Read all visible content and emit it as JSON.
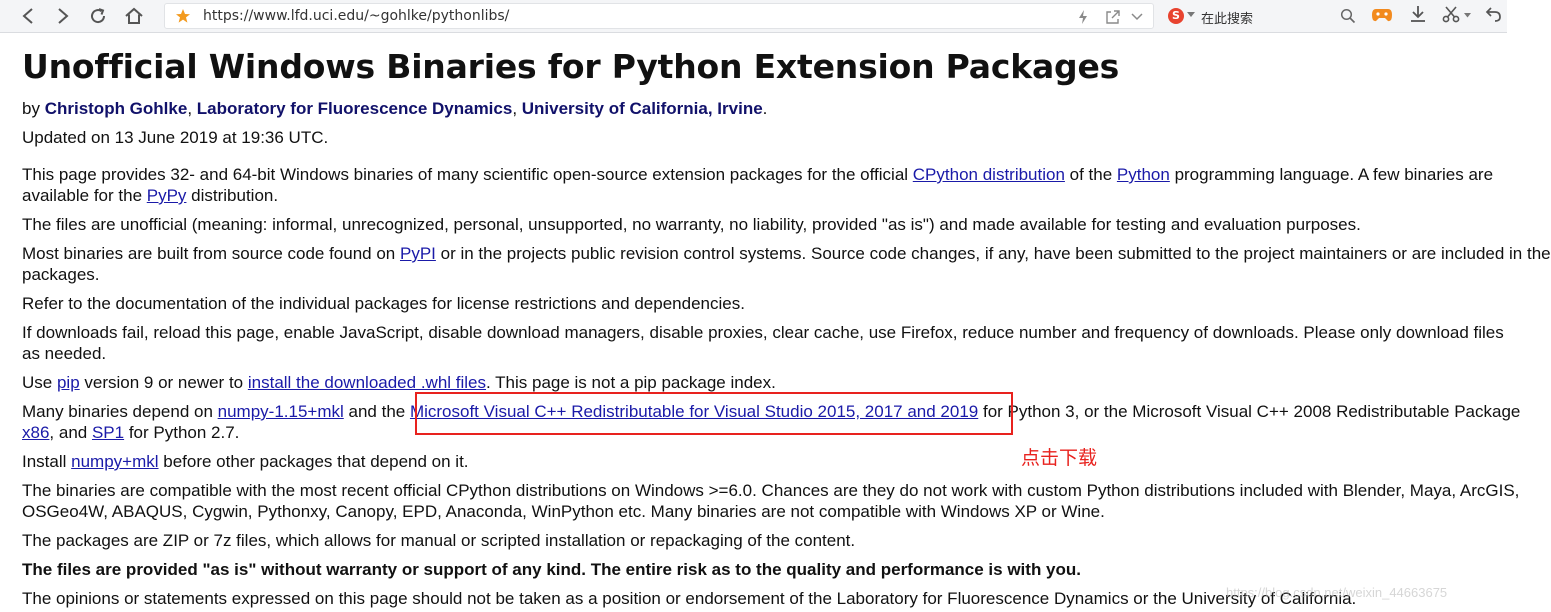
{
  "browser": {
    "url": "https://www.lfd.uci.edu/~gohlke/pythonlibs/",
    "search_placeholder": "在此搜索"
  },
  "page": {
    "title": "Unofficial Windows Binaries for Python Extension Packages",
    "byline": {
      "prefix": "by ",
      "author": "Christoph Gohlke",
      "sep1": ", ",
      "lab": "Laboratory for Fluorescence Dynamics",
      "sep2": ", ",
      "university": "University of California, Irvine",
      "suffix": "."
    },
    "updated": "Updated on 13 June 2019 at 19:36 UTC.",
    "p1": {
      "a": "This page provides 32- and 64-bit Windows binaries of many scientific open-source extension packages for the official ",
      "link1": "CPython distribution",
      "b": " of the ",
      "link2": "Python",
      "c": " programming language. A few binaries are",
      "d": "available for the ",
      "link3": "PyPy",
      "e": " distribution."
    },
    "p2": "The files are unofficial (meaning: informal, unrecognized, personal, unsupported, no warranty, no liability, provided \"as is\") and made available for testing and evaluation purposes.",
    "p3": {
      "a": "Most binaries are built from source code found on ",
      "link": "PyPI",
      "b": " or in the projects public revision control systems. Source code changes, if any, have been submitted to the project maintainers or are included in the",
      "c": "packages."
    },
    "p4": "Refer to the documentation of the individual packages for license restrictions and dependencies.",
    "p5": {
      "a": "If downloads fail, reload this page, enable JavaScript, disable download managers, disable proxies, clear cache, use Firefox, reduce number and frequency of downloads. Please only download files",
      "b": "as needed."
    },
    "p6": {
      "a": "Use ",
      "link1": "pip",
      "b": " version 9 or newer to ",
      "link2": "install the downloaded .whl files",
      "c": ". This page is not a pip package index."
    },
    "p7": {
      "a": "Many binaries depend on ",
      "link1": "numpy-1.15+mkl",
      "b": " and the ",
      "link2": "Microsoft Visual C++ Redistributable for Visual Studio 2015, 2017 and 2019",
      "c": " for Python 3, or the Microsoft Visual C++ 2008 Redistributable Package",
      "link3": "x86",
      "d": ", and ",
      "link4": "SP1",
      "e": " for Python 2.7."
    },
    "p8": {
      "a": "Install ",
      "link": "numpy+mkl",
      "b": " before other packages that depend on it."
    },
    "p9": {
      "a": "The binaries are compatible with the most recent official CPython distributions on Windows >=6.0. Chances are they do not work with custom Python distributions included with Blender, Maya, ArcGIS,",
      "b": "OSGeo4W, ABAQUS, Cygwin, Pythonxy, Canopy, EPD, Anaconda, WinPython etc. Many binaries are not compatible with Windows XP or Wine."
    },
    "p10": "The packages are ZIP or 7z files, which allows for manual or scripted installation or repackaging of the content.",
    "p11": "The files are provided \"as is\" without warranty or support of any kind. The entire risk as to the quality and performance is with you.",
    "p12": "The opinions or statements expressed on this page should not be taken as a position or endorsement of the Laboratory for Fluorescence Dynamics or the University of California."
  },
  "annotation": {
    "label": "点击下载",
    "color": "#e8221e"
  },
  "watermark": "https://blog.csdn.net/weixin_44663675"
}
